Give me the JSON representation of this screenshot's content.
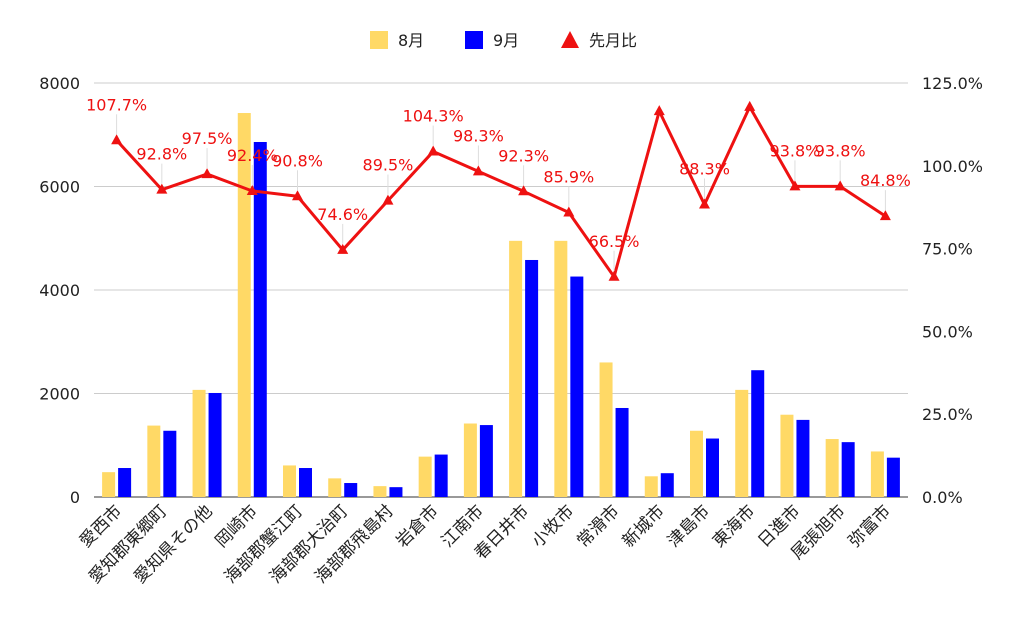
{
  "chart_data": {
    "type": "bar",
    "categories": [
      "愛西市",
      "愛知郡東郷町",
      "愛知県その他",
      "岡崎市",
      "海部郡蟹江町",
      "海部郡大治町",
      "海部郡飛島村",
      "岩倉市",
      "江南市",
      "春日井市",
      "小牧市",
      "常滑市",
      "新城市",
      "津島市",
      "東海市",
      "日進市",
      "尾張旭市",
      "弥富市"
    ],
    "series": [
      {
        "name": "8月",
        "type": "bar",
        "axis": "left",
        "color": "#FFD966",
        "values": [
          480,
          1380,
          2070,
          7420,
          610,
          360,
          210,
          780,
          1420,
          4950,
          4950,
          2600,
          400,
          1280,
          2070,
          1590,
          1120,
          880
        ]
      },
      {
        "name": "9月",
        "type": "bar",
        "axis": "left",
        "color": "#0000FF",
        "values": [
          560,
          1280,
          2010,
          6860,
          560,
          270,
          190,
          820,
          1390,
          4580,
          4260,
          1720,
          460,
          1130,
          2450,
          1490,
          1060,
          760
        ]
      },
      {
        "name": "先月比",
        "type": "line",
        "axis": "right",
        "color": "#EE1111",
        "marker": "triangle",
        "values": [
          107.7,
          92.8,
          97.5,
          92.4,
          90.8,
          74.6,
          89.5,
          104.3,
          98.3,
          92.3,
          85.9,
          66.5,
          116.5,
          88.3,
          117.8,
          93.8,
          93.8,
          84.8
        ],
        "labels": [
          "107.7%",
          "92.8%",
          "97.5%",
          "92.4%",
          "90.8%",
          "74.6%",
          "89.5%",
          "104.3%",
          "98.3%",
          "92.3%",
          "85.9%",
          "66.5%",
          "",
          "88.3%",
          "",
          "93.8%",
          "93.8%",
          "84.8%"
        ]
      }
    ],
    "y_left": {
      "ylim": [
        0,
        8000
      ],
      "ticks": [
        "0",
        "2000",
        "4000",
        "6000",
        "8000"
      ]
    },
    "y_right": {
      "ylim": [
        0,
        125
      ],
      "ticks": [
        "0.0%",
        "25.0%",
        "50.0%",
        "75.0%",
        "100.0%",
        "125.0%"
      ]
    },
    "grid": true,
    "legend_position": "top"
  }
}
